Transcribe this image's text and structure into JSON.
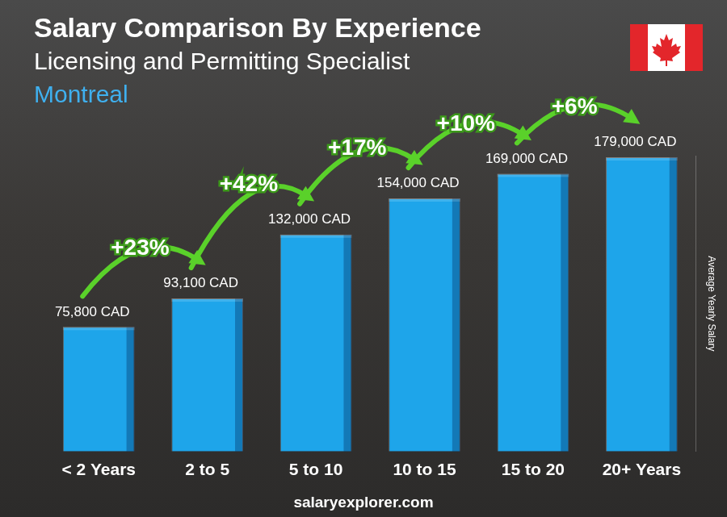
{
  "chart_data": {
    "type": "bar",
    "title": "Salary Comparison By Experience",
    "subtitle": "Licensing and Permitting Specialist",
    "location": "Montreal",
    "ylabel": "Average Yearly Salary",
    "source": "salaryexplorer.com",
    "categories": [
      "< 2 Years",
      "2 to 5",
      "5 to 10",
      "10 to 15",
      "15 to 20",
      "20+ Years"
    ],
    "values": [
      75800,
      93100,
      132000,
      154000,
      169000,
      179000
    ],
    "value_labels": [
      "75,800 CAD",
      "93,100 CAD",
      "132,000 CAD",
      "154,000 CAD",
      "169,000 CAD",
      "179,000 CAD"
    ],
    "annotations": [
      "+23%",
      "+42%",
      "+17%",
      "+10%",
      "+6%"
    ],
    "color": "#1ea5ea",
    "ylim": [
      0,
      180000
    ],
    "grid": false,
    "tick_labels": "x",
    "data_labels": true
  }
}
